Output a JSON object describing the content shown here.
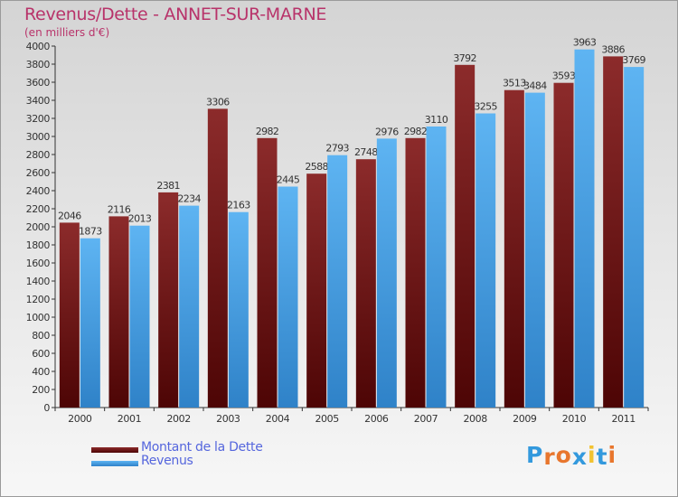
{
  "chart_data": {
    "type": "bar",
    "title": "Revenus/Dette - ANNET-SUR-MARNE",
    "subtitle": "(en milliers d'€)",
    "categories": [
      "2000",
      "2001",
      "2002",
      "2003",
      "2004",
      "2005",
      "2006",
      "2007",
      "2008",
      "2009",
      "2010",
      "2011"
    ],
    "series": [
      {
        "name": "Montant de la Dette",
        "color": "#7a1c1c",
        "values": [
          2046,
          2116,
          2381,
          3306,
          2982,
          2588,
          2748,
          2982,
          3792,
          3513,
          3593,
          3886
        ]
      },
      {
        "name": "Revenus",
        "color": "#4da6e8",
        "values": [
          1873,
          2013,
          2234,
          2163,
          2445,
          2793,
          2976,
          3110,
          3255,
          3484,
          3963,
          3769
        ]
      }
    ],
    "ylim": [
      0,
      4000
    ],
    "ytick_step": 200,
    "grid": false,
    "legend_position": "bottom-left"
  },
  "logo": {
    "text": "Proxiti",
    "colors": [
      "#3399dd",
      "#e8762d",
      "#e8762d",
      "#3399dd",
      "#f2c230",
      "#3399dd",
      "#e8762d"
    ]
  }
}
